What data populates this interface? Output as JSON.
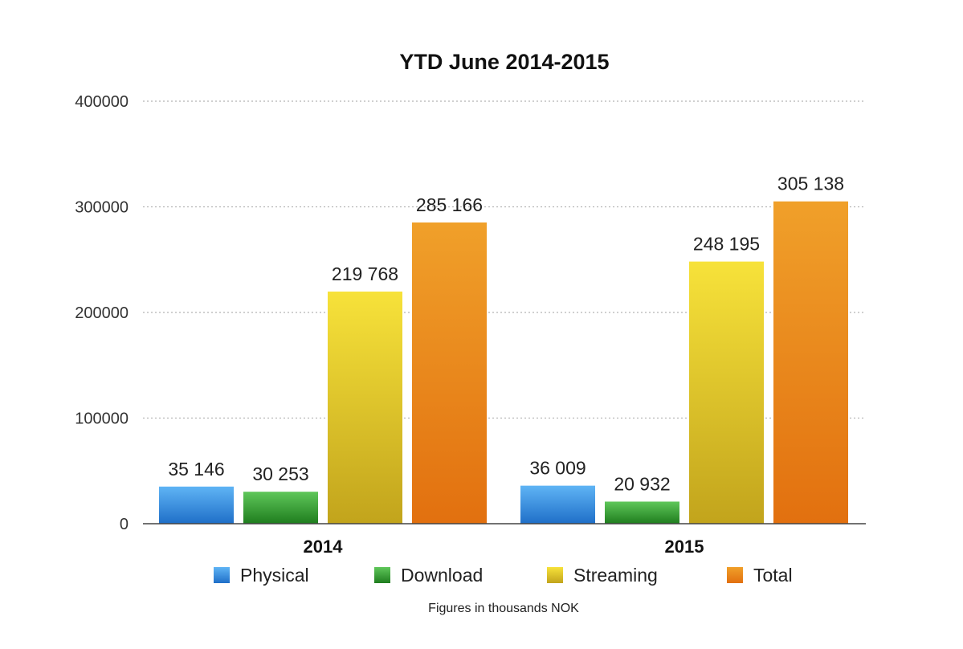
{
  "chart_data": {
    "type": "bar",
    "title": "YTD June 2014-2015",
    "footnote": "Figures in thousands NOK",
    "categories": [
      "2014",
      "2015"
    ],
    "series": [
      {
        "name": "Physical",
        "values": [
          35146,
          36009
        ],
        "labels": [
          "35 146",
          "36 009"
        ],
        "color": "#2f8fe6",
        "color_light": "#5fb4f5",
        "color_dark": "#1f6fc8"
      },
      {
        "name": "Download",
        "values": [
          30253,
          20932
        ],
        "labels": [
          "30 253",
          "20 932"
        ],
        "color": "#33a02c",
        "color_light": "#5fc75a",
        "color_dark": "#1f7d1e"
      },
      {
        "name": "Streaming",
        "values": [
          219768,
          248195
        ],
        "labels": [
          "219 768",
          "248 195"
        ],
        "color": "#e8c520",
        "color_light": "#f7e23a",
        "color_dark": "#c2a41c"
      },
      {
        "name": "Total",
        "values": [
          285166,
          305138
        ],
        "labels": [
          "285 166",
          "305 138"
        ],
        "color": "#ee8a17",
        "color_light": "#f0a02a",
        "color_dark": "#e2700f"
      }
    ],
    "yticks": [
      0,
      100000,
      200000,
      300000,
      400000
    ],
    "ytick_labels": [
      "0",
      "100000",
      "200000",
      "300000",
      "400000"
    ],
    "ylim": [
      0,
      400000
    ],
    "grid": true,
    "grid_style": "dotted",
    "legend_position": "bottom"
  }
}
